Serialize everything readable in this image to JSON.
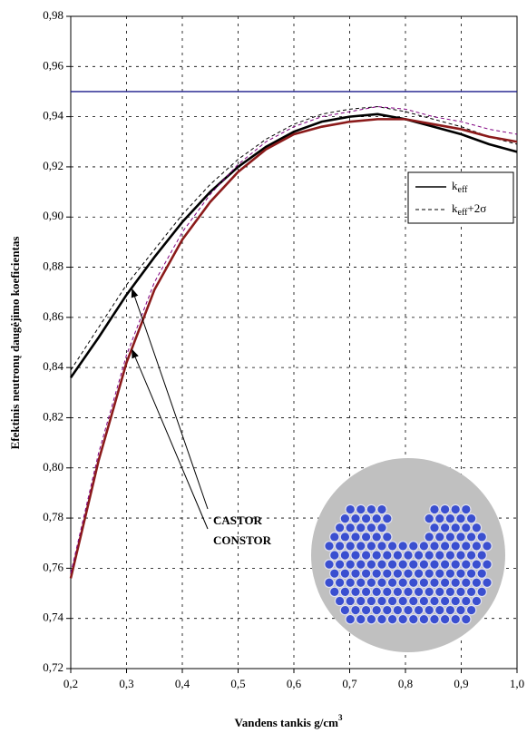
{
  "chart_data": {
    "type": "line",
    "x_label": "Vandens tankis  g/cm",
    "x_label_sup": "3",
    "y_label": "Efektinis neutronų daugėjimo koeficientas",
    "x": [
      0.2,
      0.25,
      0.3,
      0.35,
      0.4,
      0.45,
      0.5,
      0.55,
      0.6,
      0.65,
      0.7,
      0.75,
      0.8,
      0.85,
      0.9,
      0.95,
      1.0
    ],
    "series": [
      {
        "name": "CASTOR",
        "color": "#000000",
        "style": "solid",
        "values": [
          0.836,
          0.852,
          0.869,
          0.884,
          0.898,
          0.91,
          0.92,
          0.928,
          0.934,
          0.938,
          0.94,
          0.941,
          0.939,
          0.936,
          0.933,
          0.929,
          0.926
        ]
      },
      {
        "name": "CASTOR",
        "color": "#000000",
        "style": "dashed",
        "values": [
          0.839,
          0.856,
          0.873,
          0.887,
          0.901,
          0.913,
          0.923,
          0.931,
          0.937,
          0.941,
          0.943,
          0.944,
          0.942,
          0.939,
          0.936,
          0.932,
          0.929
        ]
      },
      {
        "name": "CONSTOR",
        "color": "#8b1a1a",
        "style": "solid",
        "values": [
          0.756,
          0.803,
          0.842,
          0.871,
          0.891,
          0.906,
          0.918,
          0.927,
          0.933,
          0.936,
          0.938,
          0.939,
          0.939,
          0.937,
          0.935,
          0.932,
          0.93
        ]
      },
      {
        "name": "CONSTOR",
        "color": "#800080",
        "style": "dashed",
        "values": [
          0.758,
          0.806,
          0.845,
          0.874,
          0.894,
          0.909,
          0.921,
          0.93,
          0.936,
          0.94,
          0.942,
          0.944,
          0.943,
          0.94,
          0.938,
          0.935,
          0.933
        ]
      }
    ],
    "reference_line": {
      "value": 0.95,
      "color": "#1a1a8c"
    },
    "legend": [
      {
        "text": "k",
        "sub": "eff",
        "style": "solid"
      },
      {
        "text": "k",
        "sub": "eff",
        "suffix": "+2σ",
        "style": "dashed"
      }
    ],
    "xlim": [
      0.2,
      1.0
    ],
    "xticks": [
      {
        "value": 0.2,
        "label": "0,2"
      },
      {
        "value": 0.3,
        "label": "0,3"
      },
      {
        "value": 0.4,
        "label": "0,4"
      },
      {
        "value": 0.5,
        "label": "0,5"
      },
      {
        "value": 0.6,
        "label": "0,6"
      },
      {
        "value": 0.7,
        "label": "0,7"
      },
      {
        "value": 0.8,
        "label": "0,8"
      },
      {
        "value": 0.9,
        "label": "0,9"
      },
      {
        "value": 1.0,
        "label": "1,0"
      }
    ],
    "ylim": [
      0.72,
      0.98
    ],
    "yticks": [
      {
        "value": 0.72,
        "label": "0,72"
      },
      {
        "value": 0.74,
        "label": "0,74"
      },
      {
        "value": 0.76,
        "label": "0,76"
      },
      {
        "value": 0.78,
        "label": "0,78"
      },
      {
        "value": 0.8,
        "label": "0,80"
      },
      {
        "value": 0.82,
        "label": "0,82"
      },
      {
        "value": 0.84,
        "label": "0,84"
      },
      {
        "value": 0.86,
        "label": "0,86"
      },
      {
        "value": 0.88,
        "label": "0,88"
      },
      {
        "value": 0.9,
        "label": "0,90"
      },
      {
        "value": 0.92,
        "label": "0,92"
      },
      {
        "value": 0.94,
        "label": "0,94"
      },
      {
        "value": 0.96,
        "label": "0,96"
      },
      {
        "value": 0.98,
        "label": "0,98"
      }
    ],
    "grid": true
  }
}
